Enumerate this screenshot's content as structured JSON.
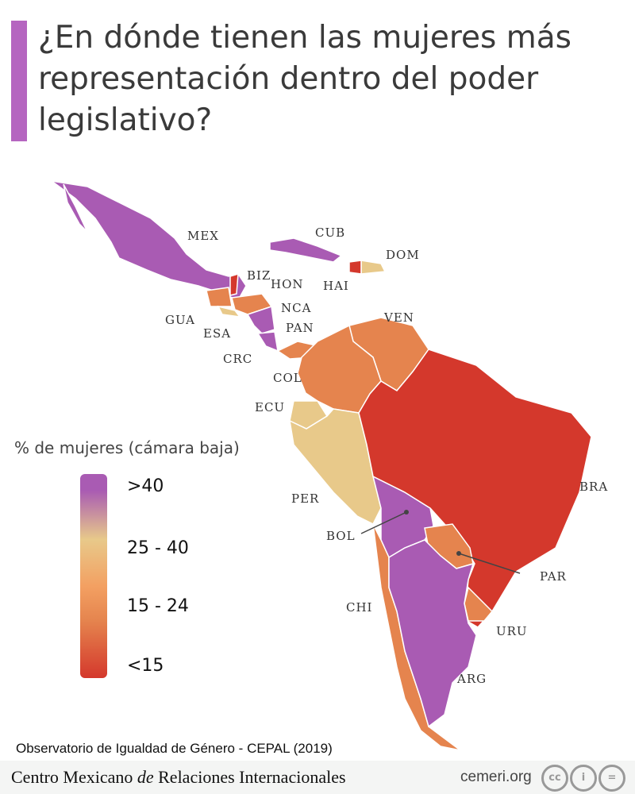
{
  "title": "¿En dónde tienen las mujeres más representación dentro del poder legislativo?",
  "accent_color": "#b565c0",
  "colors": {
    "gt40": "#a95bb3",
    "25_40": "#e8c98a",
    "15_24": "#e5844e",
    "lt15": "#d4382c"
  },
  "legend": {
    "title": "% de mujeres (cámara baja)",
    "labels": [
      ">40",
      "25 - 40",
      "15 - 24",
      "<15"
    ]
  },
  "countries": [
    {
      "code": "MEX",
      "category": "gt40"
    },
    {
      "code": "CUB",
      "category": "gt40"
    },
    {
      "code": "DOM",
      "category": "25_40"
    },
    {
      "code": "HAI",
      "category": "lt15"
    },
    {
      "code": "BIZ",
      "category": "lt15"
    },
    {
      "code": "HON",
      "category": "15_24"
    },
    {
      "code": "NCA",
      "category": "gt40"
    },
    {
      "code": "GUA",
      "category": "15_24"
    },
    {
      "code": "ESA",
      "category": "25_40"
    },
    {
      "code": "CRC",
      "category": "gt40"
    },
    {
      "code": "PAN",
      "category": "15_24"
    },
    {
      "code": "VEN",
      "category": "15_24"
    },
    {
      "code": "COL",
      "category": "15_24"
    },
    {
      "code": "ECU",
      "category": "25_40"
    },
    {
      "code": "PER",
      "category": "25_40"
    },
    {
      "code": "BOL",
      "category": "gt40"
    },
    {
      "code": "BRA",
      "category": "lt15"
    },
    {
      "code": "PAR",
      "category": "15_24"
    },
    {
      "code": "URU",
      "category": "15_24"
    },
    {
      "code": "CHI",
      "category": "15_24"
    },
    {
      "code": "ARG",
      "category": "gt40"
    }
  ],
  "source": "Observatorio de Igualdad de Género -  CEPAL (2019)",
  "footer": {
    "org_pre": "Centro Mexicano ",
    "org_em": "de",
    "org_post": " Relaciones Internacionales",
    "site": "cemeri.org",
    "license_icons": [
      "cc",
      "i",
      "="
    ]
  }
}
